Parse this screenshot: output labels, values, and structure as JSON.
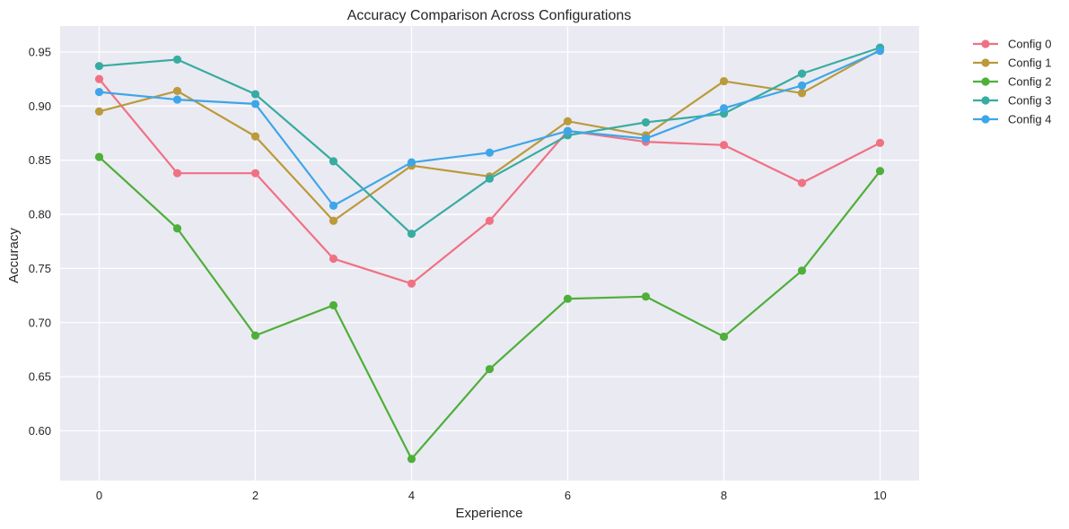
{
  "chart_data": {
    "type": "line",
    "title": "Accuracy Comparison Across Configurations",
    "xlabel": "Experience",
    "ylabel": "Accuracy",
    "xlim": [
      -0.5,
      10.5
    ],
    "ylim": [
      0.554,
      0.974
    ],
    "xticks": [
      0,
      2,
      4,
      6,
      8,
      10
    ],
    "xtick_labels": [
      "0",
      "2",
      "4",
      "6",
      "8",
      "10"
    ],
    "yticks": [
      0.6,
      0.65,
      0.7,
      0.75,
      0.8,
      0.85,
      0.9,
      0.95
    ],
    "ytick_labels": [
      "0.60",
      "0.65",
      "0.70",
      "0.75",
      "0.80",
      "0.85",
      "0.90",
      "0.95"
    ],
    "grid": true,
    "legend_position": "outside-top-right",
    "x": [
      0,
      1,
      2,
      3,
      4,
      5,
      6,
      7,
      8,
      9,
      10
    ],
    "series": [
      {
        "name": "Config 0",
        "color": "#f07184",
        "values": [
          0.925,
          0.838,
          0.838,
          0.759,
          0.736,
          0.794,
          0.877,
          0.867,
          0.864,
          0.829,
          0.866
        ]
      },
      {
        "name": "Config 1",
        "color": "#ba9a3a",
        "values": [
          0.895,
          0.914,
          0.872,
          0.794,
          0.845,
          0.835,
          0.886,
          0.873,
          0.923,
          0.912,
          0.952
        ]
      },
      {
        "name": "Config 2",
        "color": "#4eaf3a",
        "values": [
          0.853,
          0.787,
          0.688,
          0.716,
          0.574,
          0.657,
          0.722,
          0.724,
          0.687,
          0.748,
          0.84
        ]
      },
      {
        "name": "Config 3",
        "color": "#37aca0",
        "values": [
          0.937,
          0.943,
          0.911,
          0.849,
          0.782,
          0.833,
          0.873,
          0.885,
          0.893,
          0.93,
          0.954
        ]
      },
      {
        "name": "Config 4",
        "color": "#3ea6e8",
        "values": [
          0.913,
          0.906,
          0.902,
          0.808,
          0.848,
          0.857,
          0.877,
          0.87,
          0.898,
          0.919,
          0.951
        ]
      }
    ]
  }
}
